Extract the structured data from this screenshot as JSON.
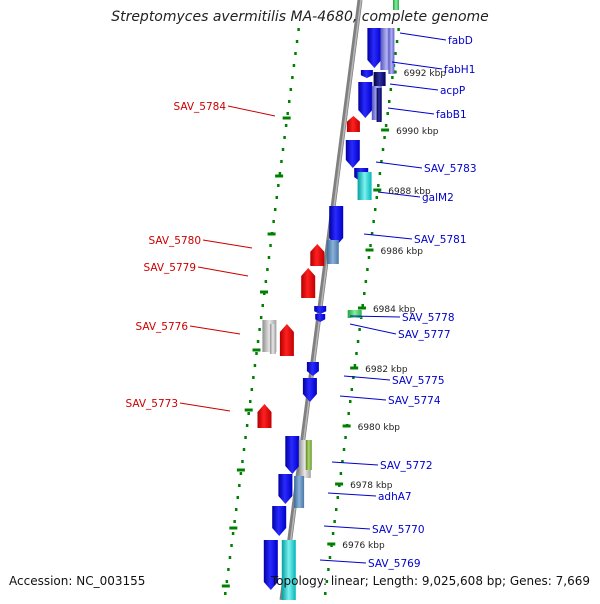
{
  "title": "Streptomyces avermitilis MA-4680, complete genome",
  "footer": {
    "accession": "Accession: NC_003155",
    "topology": "Topology: linear; Length: 9,025,608 bp; Genes: 7,669"
  },
  "colors": {
    "left_gene_label": "#cc0000",
    "right_gene_label": "#0000cc",
    "backbone": "#808080",
    "track_dots": "#008000"
  },
  "scale_labels": [
    "6992 kbp",
    "6990 kbp",
    "6988 kbp",
    "6986 kbp",
    "6984 kbp",
    "6982 kbp",
    "6980 kbp",
    "6978 kbp",
    "6976 kbp"
  ],
  "left_genes": [
    "SAV_5784",
    "SAV_5780",
    "SAV_5779",
    "SAV_5776",
    "SAV_5773"
  ],
  "right_genes": [
    "fabD",
    "fabH1",
    "acpP",
    "fabB1",
    "SAV_5783",
    "galM2",
    "SAV_5781",
    "SAV_5778",
    "SAV_5777",
    "SAV_5775",
    "SAV_5774",
    "SAV_5772",
    "adhA7",
    "SAV_5770",
    "SAV_5769"
  ]
}
